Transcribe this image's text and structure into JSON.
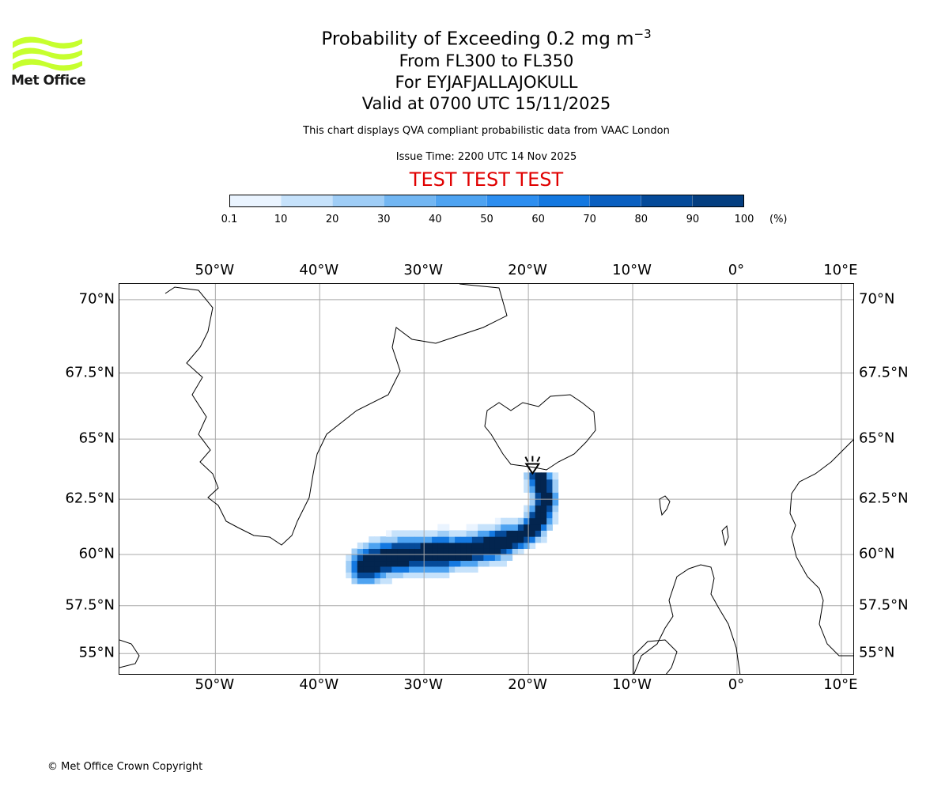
{
  "header": {
    "title_main": "Probability of Exceeding 0.2 mg m",
    "title_sup": "−3",
    "title_levels": "From FL300 to FL350",
    "title_volcano": "For EYJAFJALLAJOKULL",
    "title_valid": "Valid at 0700 UTC 15/11/2025",
    "subtitle": "This chart displays QVA compliant probabilistic data from VAAC London",
    "issue_time": "Issue Time: 2200 UTC 14 Nov 2025",
    "test_banner": "TEST TEST TEST"
  },
  "logo": {
    "text": "Met Office",
    "color": "#c6ff2e"
  },
  "colorbar": {
    "labels": [
      "0.1",
      "10",
      "20",
      "30",
      "40",
      "50",
      "60",
      "70",
      "80",
      "90",
      "100"
    ],
    "unit": "(%)",
    "colors": [
      "#eaf4ff",
      "#c6e2fb",
      "#9fcdf6",
      "#72b6f2",
      "#4ea3f1",
      "#2d8ef0",
      "#1478e0",
      "#0a5fc0",
      "#054a99",
      "#043e80",
      "#03254f"
    ]
  },
  "map": {
    "projection": "equirectangular-style",
    "lon_range": [
      -59.2,
      11.3
    ],
    "lat_range": [
      53.8,
      70.5
    ],
    "lon_ticks": [
      -50,
      -40,
      -30,
      -20,
      -10,
      0,
      10
    ],
    "lon_tick_labels": [
      "50°W",
      "40°W",
      "30°W",
      "20°W",
      "10°W",
      "0°",
      "10°E"
    ],
    "lat_ticks": [
      70,
      67.5,
      65,
      62.5,
      60,
      57.5,
      55
    ],
    "lat_tick_labels": [
      "70°N",
      "67.5°N",
      "65°N",
      "62.5°N",
      "60°N",
      "57.5°N",
      "55°N"
    ],
    "grid": true,
    "gridline_color": "#aaaaaa",
    "volcano": {
      "name": "Eyjafjallajokull",
      "lon": -19.6,
      "lat": 63.6
    }
  },
  "footer": {
    "copyright": "© Met Office Crown Copyright"
  }
}
